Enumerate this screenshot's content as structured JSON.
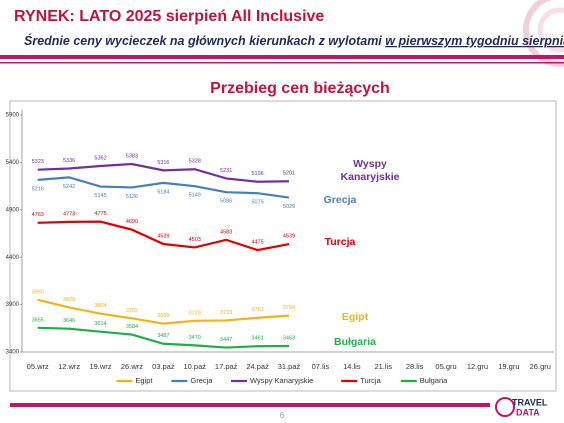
{
  "header": {
    "title": "RYNEK: LATO 2025 sierpień All Inclusive",
    "subtitle": "Średnie ceny wycieczek na głównych kierunkach z wylotami",
    "subtitle_underlined": "w pierwszym tygodniu sierpnia"
  },
  "chart_data": {
    "type": "line",
    "title": "Przebieg cen bieżących",
    "categories": [
      "05.wrz",
      "12.wrz",
      "19.wrz",
      "26.wrz",
      "03.paź",
      "10.paź",
      "17.paź",
      "24.paź",
      "31.paź",
      "07.lis",
      "14.lis",
      "21.lis",
      "28.lis",
      "05.gru",
      "12.gru",
      "19.gru",
      "26.gru"
    ],
    "ylim": [
      3400,
      5900
    ],
    "yticks": [
      3400,
      3900,
      4400,
      4900,
      5400,
      5900
    ],
    "grid": false,
    "legend": "bottom",
    "series": [
      {
        "name": "Egipt",
        "color": "#f2b21c",
        "label_side": "above",
        "values": [
          3950,
          3870,
          3804,
          3755,
          3699,
          3729,
          3733,
          3761,
          3784,
          null,
          null,
          null,
          null,
          null,
          null,
          null,
          null
        ]
      },
      {
        "name": "Grecja",
        "color": "#4a7ebb",
        "label_side": "below",
        "values": [
          5216,
          5242,
          5145,
          5136,
          5184,
          5149,
          5086,
          5075,
          5029,
          null,
          null,
          null,
          null,
          null,
          null,
          null,
          null
        ]
      },
      {
        "name": "Wyspy Kanaryjskie",
        "color": "#7030a0",
        "label_side": "above",
        "values": [
          5323,
          5336,
          5362,
          5383,
          5316,
          5328,
          5231,
          5196,
          5201,
          null,
          null,
          null,
          null,
          null,
          null,
          null,
          null
        ]
      },
      {
        "name": "Turcja",
        "color": "#e00000",
        "label_side": "above",
        "values": [
          4763,
          4773,
          4775,
          4690,
          4539,
          4503,
          4583,
          4475,
          4539,
          null,
          null,
          null,
          null,
          null,
          null,
          null,
          null
        ]
      },
      {
        "name": "Bułgaria",
        "color": "#1fae4b",
        "label_side": "above",
        "values": [
          3655,
          3646,
          3614,
          3584,
          3487,
          3470,
          3447,
          3461,
          3463,
          null,
          null,
          null,
          null,
          null,
          null,
          null,
          null
        ]
      }
    ],
    "annotations": [
      {
        "text": "Wyspy Kanaryjskie",
        "series": 2
      },
      {
        "text": "Grecja",
        "series": 1
      },
      {
        "text": "Turcja",
        "series": 3
      },
      {
        "text": "Egipt",
        "series": 0
      },
      {
        "text": "Bułgaria",
        "series": 4
      }
    ]
  },
  "footer": {
    "page": "6",
    "logo_top": "TRAVEL",
    "logo_bottom": "DATA"
  }
}
